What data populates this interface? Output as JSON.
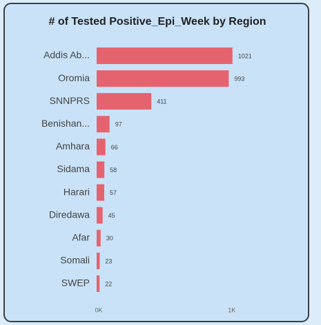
{
  "chart_data": {
    "type": "bar",
    "orientation": "horizontal",
    "title": "# of Tested Positive_Epi_Week by Region",
    "categories": [
      "Addis Ab...",
      "Oromia",
      "SNNPRS",
      "Benishan...",
      "Amhara",
      "Sidama",
      "Harari",
      "Diredawa",
      "Afar",
      "Somali",
      "SWEP"
    ],
    "values": [
      1021,
      993,
      411,
      97,
      66,
      58,
      57,
      45,
      30,
      23,
      22
    ],
    "color": "#e5636f",
    "xlim": [
      0,
      1100
    ],
    "xticks": [
      {
        "value": 0,
        "label": "0K"
      },
      {
        "value": 1000,
        "label": "1K"
      }
    ]
  }
}
